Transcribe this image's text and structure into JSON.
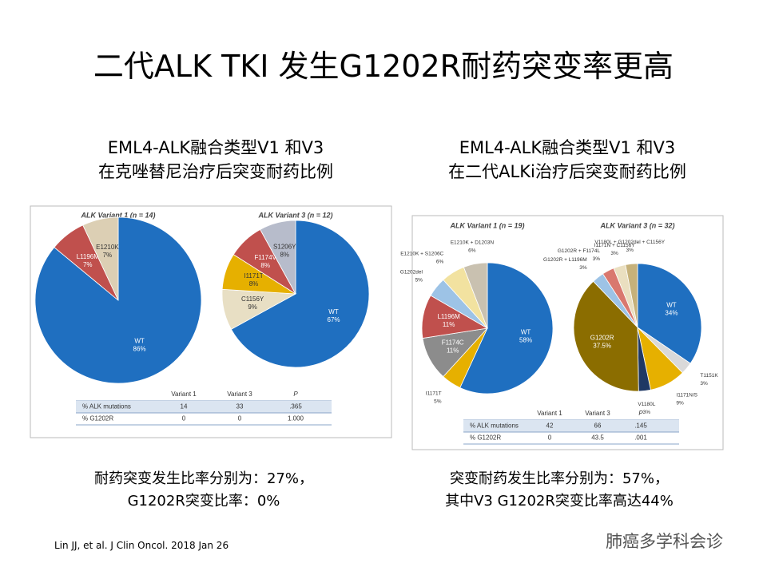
{
  "slide": {
    "title": "二代ALK TKI 发生G1202R耐药突变率更高",
    "panels": [
      {
        "heading": [
          "EML4-ALK融合类型V1 和V3",
          "在克唑替尼治疗后突变耐药比例"
        ],
        "table": {
          "header": [
            "Variant 1",
            "Variant 3",
            "P"
          ],
          "rows": [
            [
              "% ALK mutations",
              "14",
              "33",
              ".365"
            ],
            [
              "% G1202R",
              "0",
              "0",
              "1.000"
            ]
          ]
        },
        "caption": [
          "耐药突变发生比率分别为：27%，",
          "G1202R突变比率：0%"
        ]
      },
      {
        "heading": [
          "EML4-ALK融合类型V1 和V3",
          "在二代ALKi治疗后突变耐药比例"
        ],
        "table": {
          "header": [
            "Variant 1",
            "Variant 3",
            "P"
          ],
          "rows": [
            [
              "% ALK mutations",
              "42",
              "66",
              ".145"
            ],
            [
              "% G1202R",
              "0",
              "43.5",
              ".001"
            ]
          ]
        },
        "caption": [
          "突变耐药发生比率分别为：57%，",
          "其中V3 G1202R突变比率高达44%"
        ]
      }
    ],
    "citation": "Lin JJ, et al. J Clin Oncol. 2018 Jan 26",
    "watermark": "肺癌多学科会诊"
  },
  "chart_data": [
    {
      "type": "pie",
      "title": "ALK Variant 1 (n = 14)",
      "categories": [
        "WT",
        "L1196M",
        "E1210K"
      ],
      "values": [
        86,
        7,
        7
      ],
      "value_labels": [
        "86%",
        "7%",
        "7%"
      ],
      "colors": [
        "#1f6fc0",
        "#c0504d",
        "#dccfb4"
      ]
    },
    {
      "type": "pie",
      "title": "ALK Variant 3 (n = 12)",
      "categories": [
        "WT",
        "C1156Y",
        "I1171T",
        "F1174V",
        "S1206Y"
      ],
      "values": [
        67,
        9,
        8,
        8,
        8
      ],
      "value_labels": [
        "67%",
        "9%",
        "8%",
        "8%",
        "8%"
      ],
      "colors": [
        "#1f6fc0",
        "#e8dfc4",
        "#e6b000",
        "#c0504d",
        "#b7bccb"
      ]
    },
    {
      "type": "pie",
      "title": "ALK Variant 1 (n = 19)",
      "categories": [
        "WT",
        "I1171T",
        "F1174C",
        "L1196M",
        "G1202del",
        "E1210K + S1206C",
        "E1210K + D1203N"
      ],
      "values": [
        58,
        5,
        11,
        11,
        5,
        6,
        6
      ],
      "value_labels": [
        "58%",
        "5%",
        "11%",
        "11%",
        "5%",
        "6%",
        "6%"
      ],
      "colors": [
        "#1f6fc0",
        "#e6b000",
        "#8c8c8c",
        "#c0504d",
        "#9dc3e6",
        "#f2e2a0",
        "#c9c1b0"
      ]
    },
    {
      "type": "pie",
      "title": "ALK Variant 3 (n = 32)",
      "categories": [
        "WT",
        "T1151K",
        "I1171N/S",
        "V1180L",
        "G1202R",
        "G1202R + L1196M",
        "G1202R + F1174L",
        "I1171N + C1156Y",
        "V1180L + G1202del + C1156Y"
      ],
      "values": [
        34,
        3,
        9,
        3,
        37.5,
        3,
        3,
        3,
        3
      ],
      "value_labels": [
        "34%",
        "3%",
        "9%",
        "3%",
        "37.5%",
        "3%",
        "3%",
        "3%",
        "3%"
      ],
      "colors": [
        "#1f6fc0",
        "#d9d9d9",
        "#e6b000",
        "#1f3864",
        "#8b6d00",
        "#9dc3e6",
        "#d9786f",
        "#eadfc0",
        "#c6b17a"
      ]
    }
  ]
}
